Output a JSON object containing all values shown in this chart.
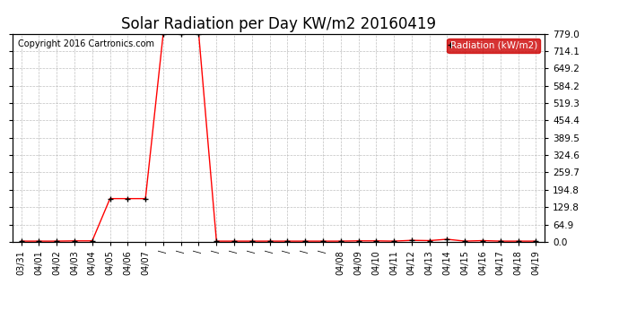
{
  "title": "Solar Radiation per Day KW/m2 20160419",
  "copyright": "Copyright 2016 Cartronics.com",
  "legend_label": "Radiation (kW/m2)",
  "line_color": "#ff0000",
  "marker": "+",
  "marker_color": "#000000",
  "background_color": "#ffffff",
  "plot_bg_color": "#ffffff",
  "grid_color": "#b0b0b0",
  "ylim": [
    0.0,
    779.0
  ],
  "yticks": [
    0.0,
    64.9,
    129.8,
    194.8,
    259.7,
    324.6,
    389.5,
    454.4,
    519.3,
    584.2,
    649.2,
    714.1,
    779.0
  ],
  "x_labels": [
    "03/31",
    "04/01",
    "04/02",
    "04/03",
    "04/04",
    "04/05",
    "04/06",
    "04/07",
    "/",
    "/",
    "/",
    "/",
    "/",
    "/",
    "/",
    "/",
    "/",
    "/",
    "04/08",
    "04/09",
    "04/10",
    "04/11",
    "04/12",
    "04/13",
    "04/14",
    "04/15",
    "04/16",
    "04/17",
    "04/18",
    "04/19"
  ],
  "x_indices": [
    0,
    1,
    2,
    3,
    4,
    5,
    6,
    7,
    8,
    9,
    10,
    11,
    12,
    13,
    14,
    15,
    16,
    17,
    18,
    19,
    20,
    21,
    22,
    23,
    24,
    25,
    26,
    27,
    28,
    29
  ],
  "y_values": [
    3,
    3,
    3,
    4,
    4,
    162,
    162,
    162,
    779,
    779,
    779,
    3,
    3,
    3,
    3,
    3,
    3,
    3,
    3,
    4,
    4,
    3,
    6,
    5,
    10,
    3,
    5,
    3,
    3,
    3
  ],
  "legend_bg": "#cc0000",
  "legend_text_color": "#ffffff"
}
